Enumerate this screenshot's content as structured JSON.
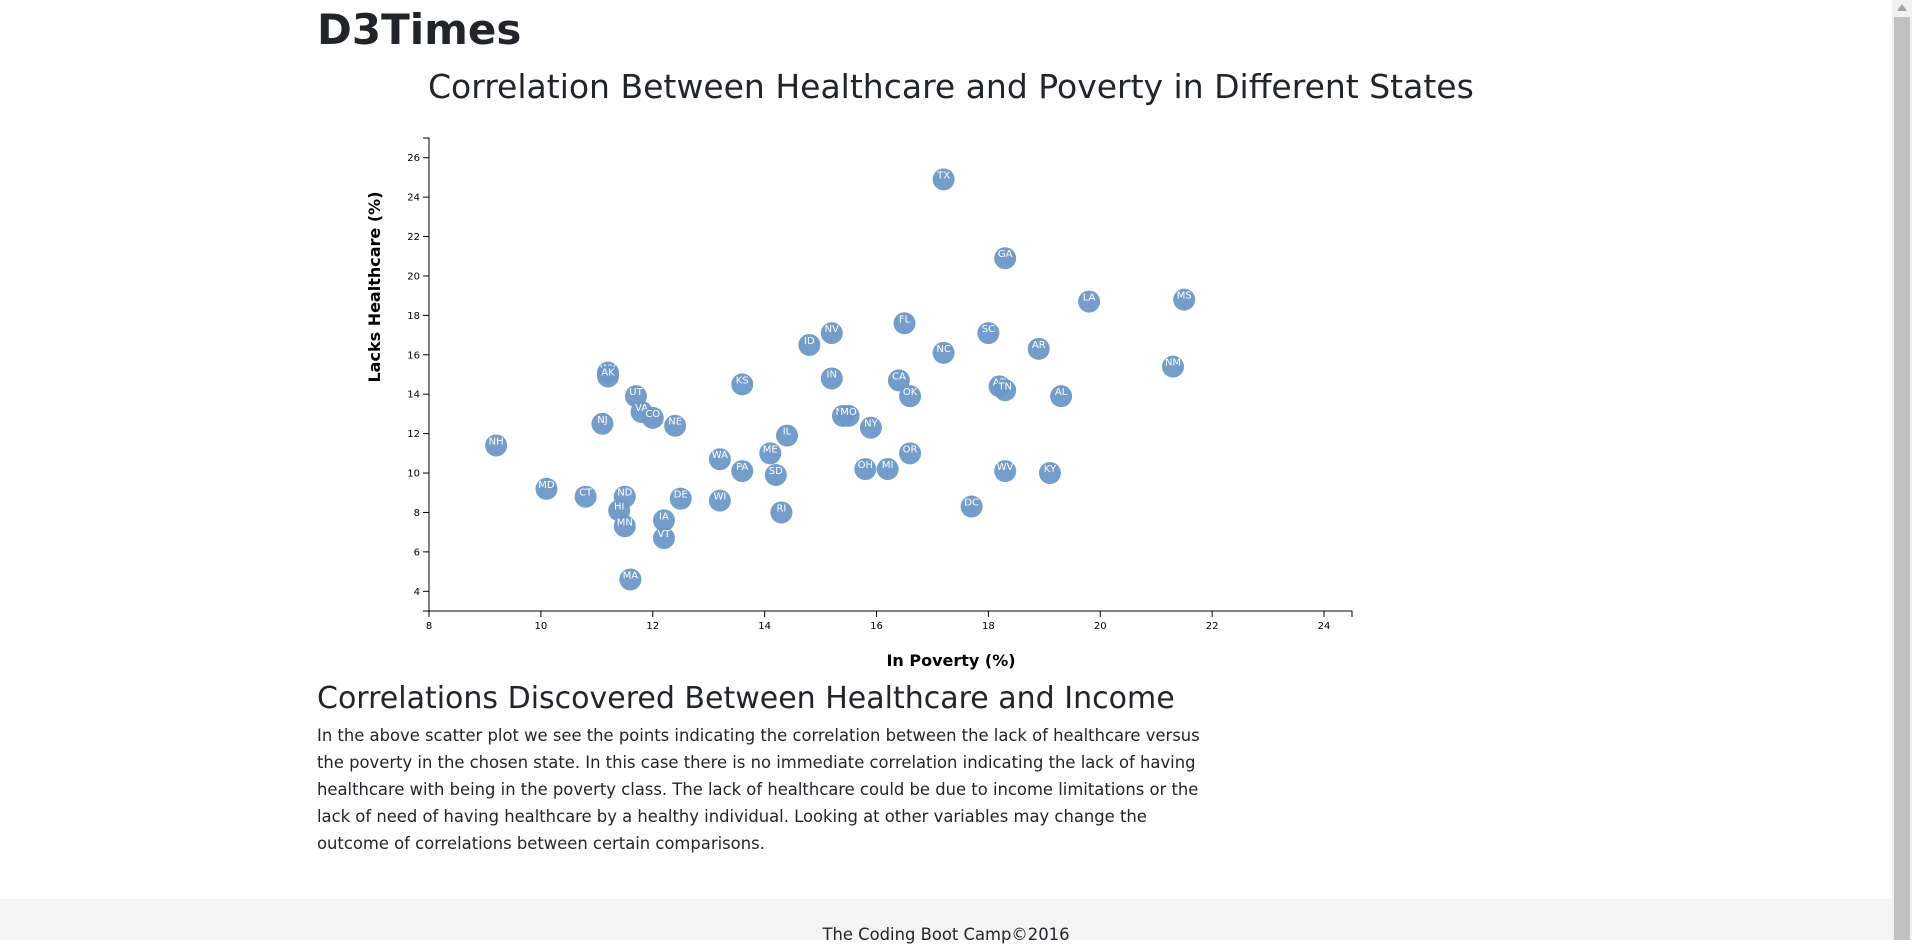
{
  "page": {
    "brand": "D3Times",
    "section_title": "Correlations Discovered Between Healthcare and Income",
    "analysis": "In the above scatter plot we see the points indicating the correlation between the lack of healthcare versus the poverty in the chosen state. In this case there is no immediate correlation indicating the lack of having healthcare with being in the poverty class. The lack of healthcare could be due to income limitations or the lack of need of having healthcare by a healthy individual. Looking at other variables may change the outcome of correlations between certain comparisons.",
    "footer": "The Coding Boot Camp©2016"
  },
  "colors": {
    "point": "#6b98c7",
    "point_text": "#ffffff"
  },
  "chart_data": {
    "type": "scatter",
    "title": "Correlation Between Healthcare and Poverty in Different States",
    "xlabel": "In Poverty (%)",
    "ylabel": "Lacks Healthcare (%)",
    "xlim": [
      8,
      24.5
    ],
    "ylim": [
      3,
      27
    ],
    "xticks": [
      "8",
      "10",
      "12",
      "14",
      "16",
      "18",
      "20",
      "22",
      "24"
    ],
    "yticks": [
      "4",
      "6",
      "8",
      "10",
      "12",
      "14",
      "16",
      "18",
      "20",
      "22",
      "24",
      "26"
    ],
    "grid": false,
    "points": [
      {
        "label": "TX",
        "x": 17.2,
        "y": 24.9
      },
      {
        "label": "GA",
        "x": 18.3,
        "y": 20.9
      },
      {
        "label": "LA",
        "x": 19.8,
        "y": 18.7
      },
      {
        "label": "MS",
        "x": 21.5,
        "y": 18.8
      },
      {
        "label": "FL",
        "x": 16.5,
        "y": 17.6
      },
      {
        "label": "NV",
        "x": 15.2,
        "y": 17.1
      },
      {
        "label": "SC",
        "x": 18.0,
        "y": 17.1
      },
      {
        "label": "ID",
        "x": 14.8,
        "y": 16.5
      },
      {
        "label": "NC",
        "x": 17.2,
        "y": 16.1
      },
      {
        "label": "AR",
        "x": 18.9,
        "y": 16.3
      },
      {
        "label": "NM",
        "x": 21.3,
        "y": 15.4
      },
      {
        "label": "WY",
        "x": 11.2,
        "y": 15.1
      },
      {
        "label": "AK",
        "x": 11.2,
        "y": 14.9
      },
      {
        "label": "KS",
        "x": 13.6,
        "y": 14.5
      },
      {
        "label": "IN",
        "x": 15.2,
        "y": 14.8
      },
      {
        "label": "CA",
        "x": 16.4,
        "y": 14.7
      },
      {
        "label": "AZ",
        "x": 18.2,
        "y": 14.4
      },
      {
        "label": "TN",
        "x": 18.3,
        "y": 14.2
      },
      {
        "label": "UT",
        "x": 11.7,
        "y": 13.9
      },
      {
        "label": "OK",
        "x": 16.6,
        "y": 13.9
      },
      {
        "label": "AL",
        "x": 19.3,
        "y": 13.9
      },
      {
        "label": "VA",
        "x": 11.8,
        "y": 13.1
      },
      {
        "label": "CO",
        "x": 12.0,
        "y": 12.8
      },
      {
        "label": "NJ",
        "x": 11.1,
        "y": 12.5
      },
      {
        "label": "NE",
        "x": 12.4,
        "y": 12.4
      },
      {
        "label": "MT",
        "x": 15.4,
        "y": 12.9
      },
      {
        "label": "MO",
        "x": 15.5,
        "y": 12.9
      },
      {
        "label": "NY",
        "x": 15.9,
        "y": 12.3
      },
      {
        "label": "IL",
        "x": 14.4,
        "y": 11.9
      },
      {
        "label": "NH",
        "x": 9.2,
        "y": 11.4
      },
      {
        "label": "ME",
        "x": 14.1,
        "y": 11.0
      },
      {
        "label": "OR",
        "x": 16.6,
        "y": 11.0
      },
      {
        "label": "WA",
        "x": 13.2,
        "y": 10.7
      },
      {
        "label": "PA",
        "x": 13.6,
        "y": 10.1
      },
      {
        "label": "SD",
        "x": 14.2,
        "y": 9.9
      },
      {
        "label": "OH",
        "x": 15.8,
        "y": 10.2
      },
      {
        "label": "MI",
        "x": 16.2,
        "y": 10.2
      },
      {
        "label": "WV",
        "x": 18.3,
        "y": 10.1
      },
      {
        "label": "KY",
        "x": 19.1,
        "y": 10.0
      },
      {
        "label": "MD",
        "x": 10.1,
        "y": 9.2
      },
      {
        "label": "CT",
        "x": 10.8,
        "y": 8.8
      },
      {
        "label": "ND",
        "x": 11.5,
        "y": 8.8
      },
      {
        "label": "DE",
        "x": 12.5,
        "y": 8.7
      },
      {
        "label": "WI",
        "x": 13.2,
        "y": 8.6
      },
      {
        "label": "HI",
        "x": 11.4,
        "y": 8.1
      },
      {
        "label": "DC",
        "x": 17.7,
        "y": 8.3
      },
      {
        "label": "RI",
        "x": 14.3,
        "y": 8.0
      },
      {
        "label": "IA",
        "x": 12.2,
        "y": 7.6
      },
      {
        "label": "MN",
        "x": 11.5,
        "y": 7.3
      },
      {
        "label": "VT",
        "x": 12.2,
        "y": 6.7
      },
      {
        "label": "MA",
        "x": 11.6,
        "y": 4.6
      }
    ]
  }
}
